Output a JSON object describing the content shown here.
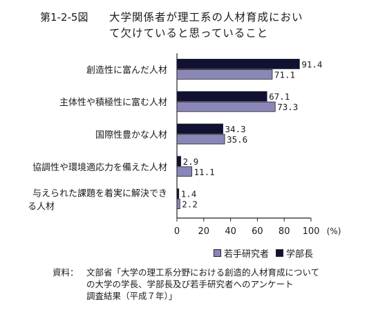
{
  "figure_label": "第1-2-5図",
  "title_lines": [
    "大学関係者が理工系の人材育成におい",
    "て欠けていると思っていること"
  ],
  "source": {
    "label": "資料：",
    "lines": [
      "文部省「大学の理工系分野における創造的人材育成についての大学の学長、学部長及び若手研究者へのアンケート",
      "調査結果（平成７年）」"
    ],
    "display_lines": [
      "文部省「大学の理工系分野における創造的人材育成について",
      "の大学の学長、学部長及び若手研究者へのアンケート",
      "調査結果（平成７年）」"
    ]
  },
  "colors": {
    "young_researcher": "#8a87b8",
    "dean": "#111133",
    "axis": "#222222"
  },
  "chart_data": {
    "type": "bar",
    "orientation": "horizontal",
    "categories": [
      [
        "創造性に富んだ人材"
      ],
      [
        "主体性や積極性に富む人材"
      ],
      [
        "国際性豊かな人材"
      ],
      [
        "協調性や環境適応力を備えた人材"
      ],
      [
        "与えられた課題を着実に解決でき",
        "る人材"
      ]
    ],
    "series": [
      {
        "name": "学部長",
        "values": [
          91.4,
          67.1,
          34.3,
          2.9,
          1.4
        ],
        "labels": [
          "91.4",
          "67.1",
          "34.3",
          "2.9",
          "1.4"
        ]
      },
      {
        "name": "若手研究者",
        "values": [
          71.1,
          73.3,
          35.6,
          11.1,
          2.2
        ],
        "labels": [
          "71.1",
          "73.3",
          "35.6",
          "11.1",
          "2.2"
        ]
      }
    ],
    "xlim": [
      0,
      100
    ],
    "xticks": [
      "0",
      "20",
      "40",
      "60",
      "80",
      "100"
    ],
    "xunit": "(%)",
    "legend": {
      "placement": "bottom-right",
      "order": [
        "若手研究者",
        "学部長"
      ]
    }
  }
}
